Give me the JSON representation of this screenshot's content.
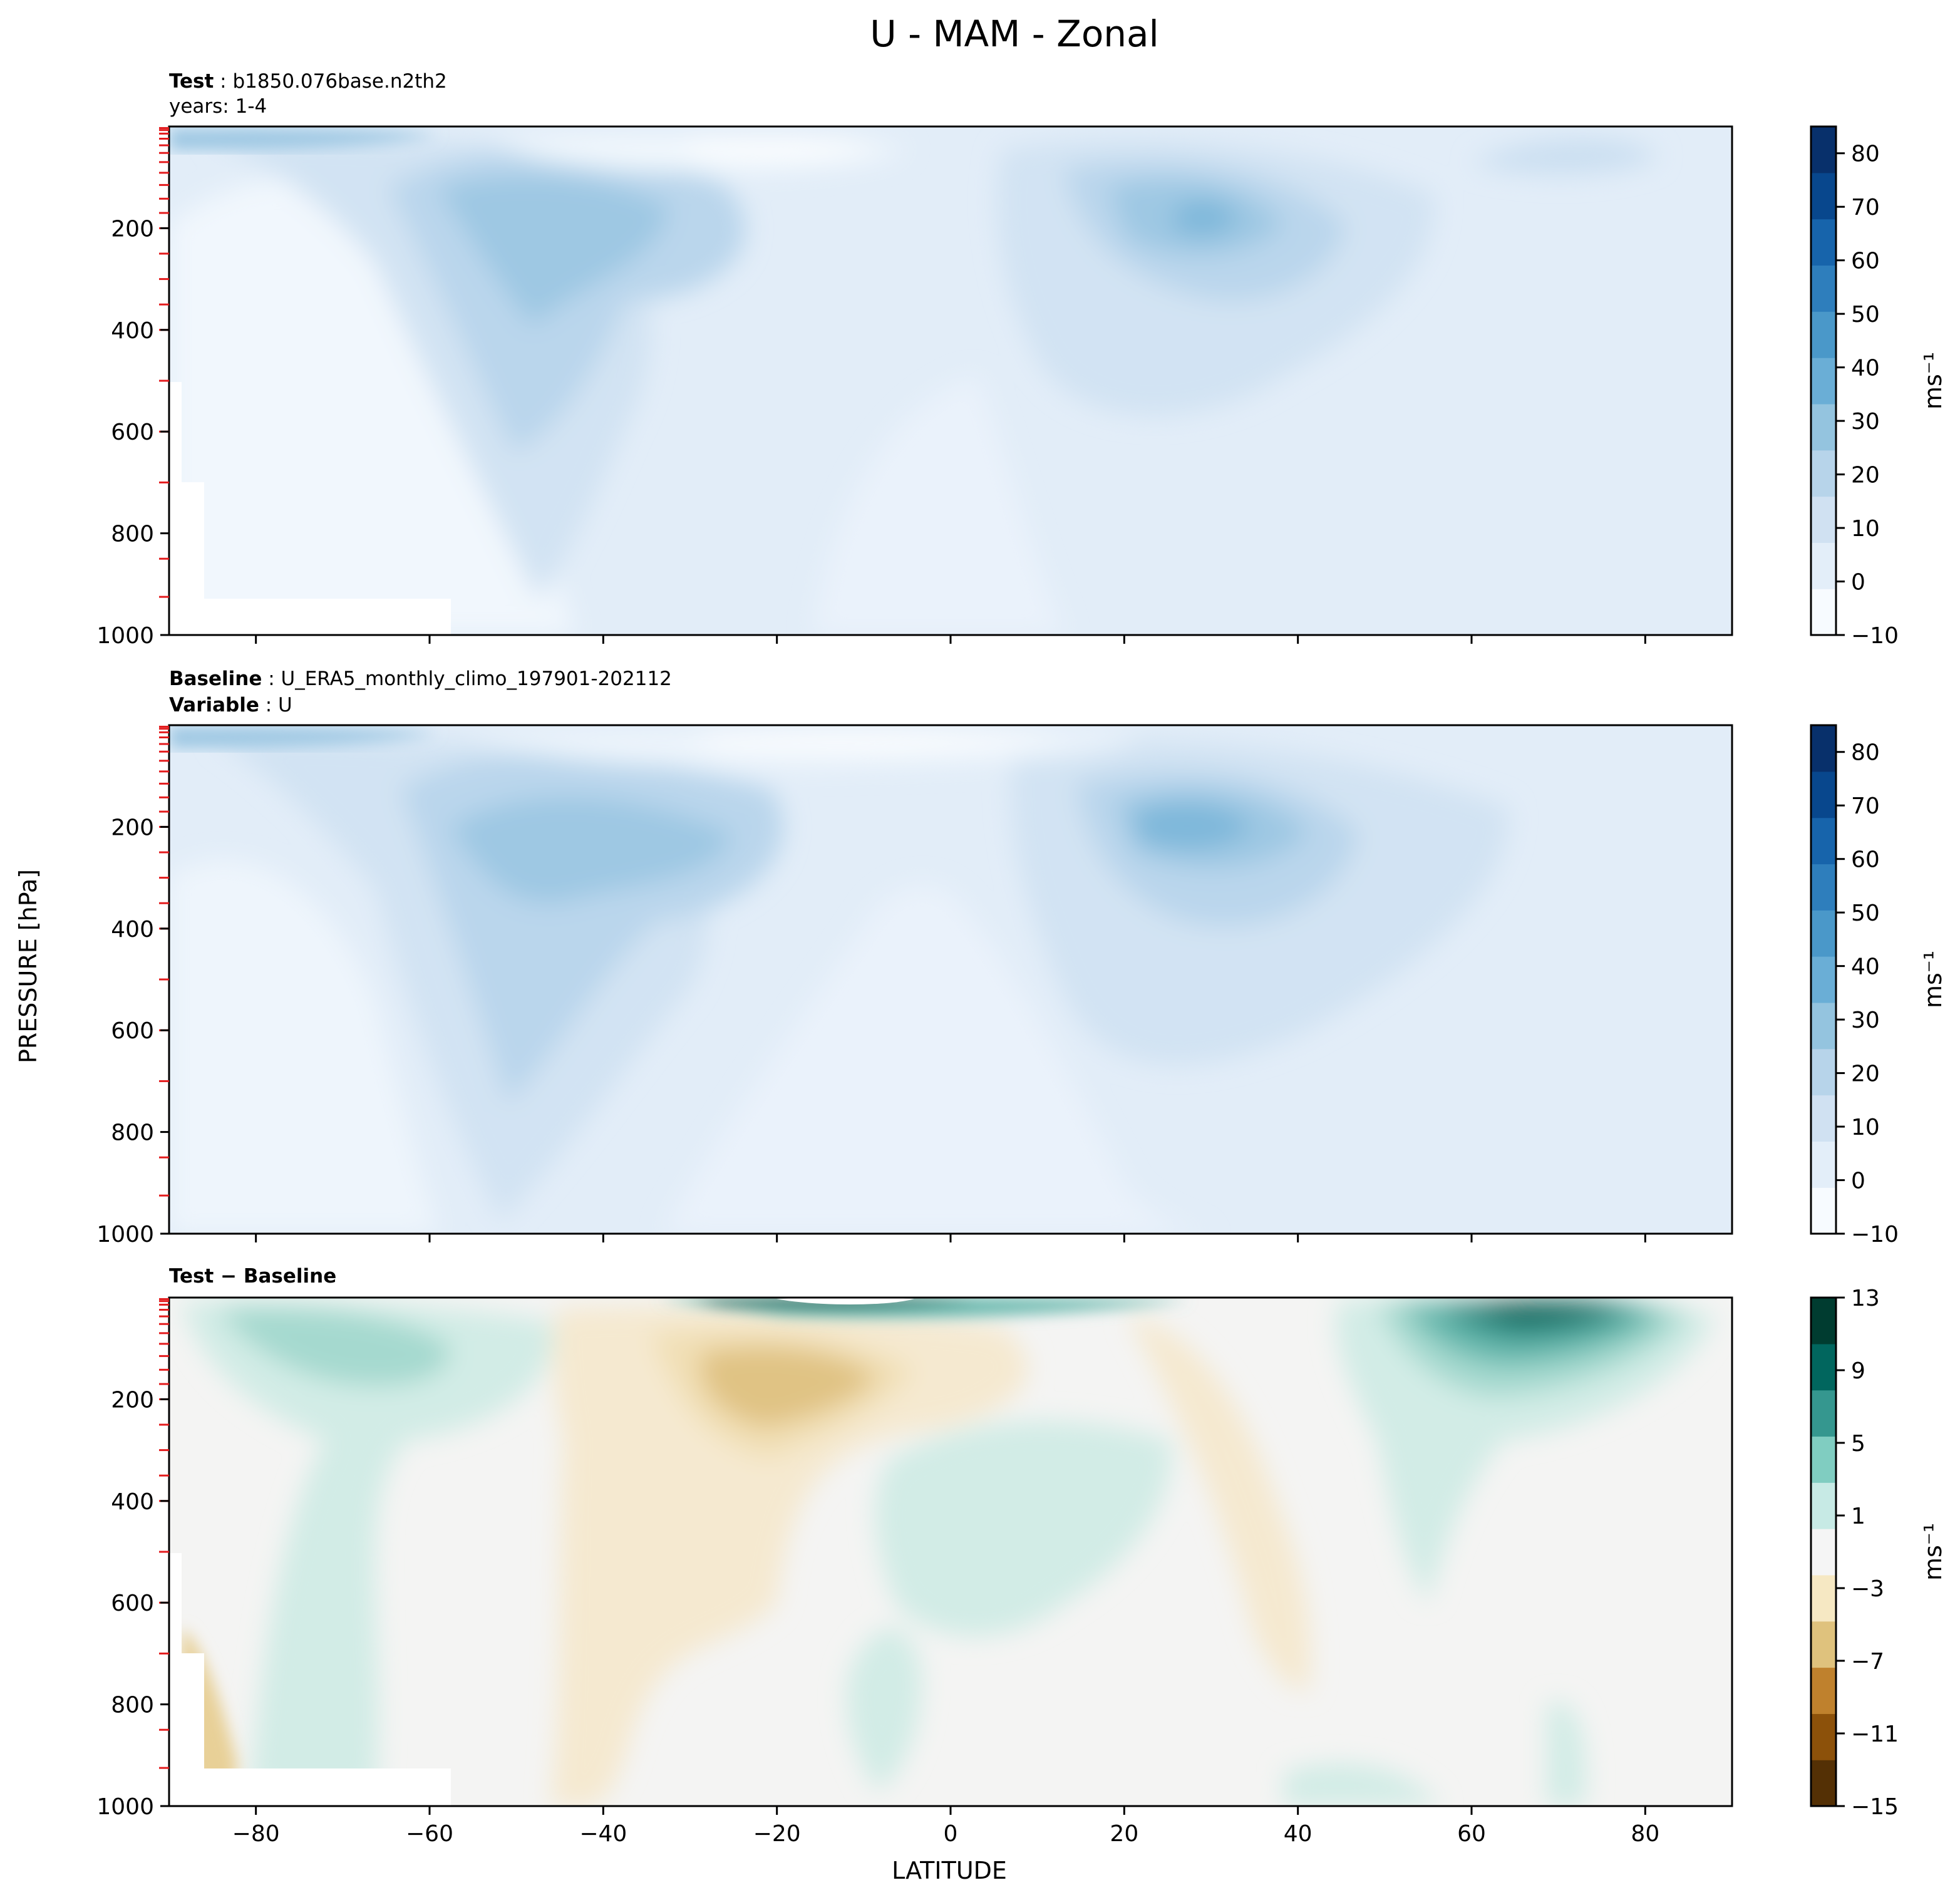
{
  "figure": {
    "title": "U - MAM - Zonal",
    "xlabel": "LATITUDE",
    "ylabel": "PRESSURE [hPa]"
  },
  "chart_data": [
    {
      "type": "heatmap",
      "panel": "test",
      "header_line1_bold": "Test",
      "header_line1_text": "b1850.076base.n2th2",
      "header_line2_bold": "",
      "header_line2_text": "years: 1-4",
      "x_ticks": [
        -80,
        -60,
        -40,
        -20,
        0,
        20,
        40,
        60,
        80
      ],
      "x_range": [
        -90,
        90
      ],
      "y_ticks": [
        200,
        400,
        600,
        800,
        1000
      ],
      "y_range": [
        0,
        1000
      ],
      "y_inverted": true,
      "colorbar": {
        "ticks": [
          80,
          70,
          60,
          50,
          40,
          30,
          20,
          10,
          0,
          -10
        ],
        "range": [
          -10,
          85
        ],
        "unit": "ms⁻¹",
        "colormap": [
          "#f7fbff",
          "#e3eef9",
          "#d0e1f2",
          "#b7d4ea",
          "#94c4df",
          "#6aaed6",
          "#4a98c9",
          "#2e7ebc",
          "#1764ab",
          "#08478d",
          "#08306b"
        ]
      },
      "features": [
        {
          "desc": "southern jet core",
          "lat": -50,
          "p": 230,
          "value": 30
        },
        {
          "desc": "northern jet core",
          "lat": 28,
          "p": 200,
          "value": 40
        }
      ]
    },
    {
      "type": "heatmap",
      "panel": "baseline",
      "header_line1_bold": "Baseline",
      "header_line1_text": "U_ERA5_monthly_climo_197901-202112",
      "header_line2_bold": "Variable",
      "header_line2_text": "U",
      "x_ticks": [
        -80,
        -60,
        -40,
        -20,
        0,
        20,
        40,
        60,
        80
      ],
      "x_range": [
        -90,
        90
      ],
      "y_ticks": [
        200,
        400,
        600,
        800,
        1000
      ],
      "y_range": [
        0,
        1000
      ],
      "y_inverted": true,
      "colorbar": {
        "ticks": [
          80,
          70,
          60,
          50,
          40,
          30,
          20,
          10,
          0,
          -10
        ],
        "range": [
          -10,
          85
        ],
        "unit": "ms⁻¹",
        "colormap": [
          "#f7fbff",
          "#e3eef9",
          "#d0e1f2",
          "#b7d4ea",
          "#94c4df",
          "#6aaed6",
          "#4a98c9",
          "#2e7ebc",
          "#1764ab",
          "#08478d",
          "#08306b"
        ]
      },
      "features": [
        {
          "desc": "southern jet core",
          "lat": -50,
          "p": 250,
          "value": 30
        },
        {
          "desc": "northern jet core",
          "lat": 30,
          "p": 190,
          "value": 40
        }
      ]
    },
    {
      "type": "heatmap",
      "panel": "difference",
      "header_line1_bold": "Test − Baseline",
      "header_line1_text": "",
      "header_line2_bold": "",
      "header_line2_text": "",
      "x_ticks": [
        -80,
        -60,
        -40,
        -20,
        0,
        20,
        40,
        60,
        80
      ],
      "x_range": [
        -90,
        90
      ],
      "y_ticks": [
        200,
        400,
        600,
        800,
        1000
      ],
      "y_range": [
        0,
        1000
      ],
      "y_inverted": true,
      "colorbar": {
        "ticks": [
          13,
          9,
          5,
          1,
          -3,
          -7,
          -11,
          -15
        ],
        "range": [
          -15,
          13
        ],
        "unit": "ms⁻¹",
        "colormap": [
          "#543005",
          "#8c510a",
          "#bf812d",
          "#dfc27d",
          "#f6e8c3",
          "#f5f5f5",
          "#c7eae5",
          "#80cdc1",
          "#35978f",
          "#01665e",
          "#003c30"
        ]
      },
      "features": [
        {
          "desc": "negative anomaly",
          "lat": -22,
          "p": 150,
          "value": -3
        },
        {
          "desc": "positive anomaly",
          "lat": 65,
          "p": 40,
          "value": 11
        }
      ]
    }
  ]
}
